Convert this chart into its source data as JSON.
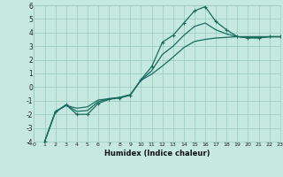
{
  "xlabel": "Humidex (Indice chaleur)",
  "xlim": [
    0,
    23
  ],
  "ylim": [
    -4,
    6
  ],
  "xticks": [
    0,
    1,
    2,
    3,
    4,
    5,
    6,
    7,
    8,
    9,
    10,
    11,
    12,
    13,
    14,
    15,
    16,
    17,
    18,
    19,
    20,
    21,
    22,
    23
  ],
  "yticks": [
    -4,
    -3,
    -2,
    -1,
    0,
    1,
    2,
    3,
    4,
    5,
    6
  ],
  "bg_color": "#c5e8e0",
  "grid_color": "#9ecdc4",
  "line_color": "#1a6b60",
  "line1_x": [
    1,
    2,
    3,
    4,
    5,
    6,
    7,
    8,
    9,
    10,
    11,
    12,
    13,
    14,
    15,
    16,
    17,
    18,
    19,
    20,
    21,
    22,
    23
  ],
  "line1_y": [
    -4,
    -1.8,
    -1.3,
    -2.0,
    -2.0,
    -1.2,
    -0.9,
    -0.8,
    -0.6,
    0.55,
    1.5,
    3.3,
    3.8,
    4.7,
    5.6,
    5.9,
    4.8,
    4.2,
    3.7,
    3.6,
    3.6,
    3.7,
    3.7
  ],
  "line2_x": [
    1,
    2,
    3,
    4,
    5,
    6,
    7,
    8,
    9,
    10,
    11,
    12,
    13,
    14,
    15,
    16,
    17,
    18,
    19,
    20,
    21,
    22,
    23
  ],
  "line2_y": [
    -4,
    -1.8,
    -1.35,
    -1.55,
    -1.45,
    -0.95,
    -0.85,
    -0.75,
    -0.55,
    0.5,
    0.95,
    1.55,
    2.2,
    2.9,
    3.35,
    3.5,
    3.6,
    3.65,
    3.7,
    3.7,
    3.7,
    3.7,
    3.7
  ],
  "line3_x": [
    1,
    2,
    3,
    4,
    5,
    6,
    7,
    8,
    9,
    10,
    11,
    12,
    13,
    14,
    15,
    16,
    17,
    18,
    19,
    20,
    21,
    22,
    23
  ],
  "line3_y": [
    -4,
    -1.85,
    -1.32,
    -1.78,
    -1.72,
    -1.07,
    -0.87,
    -0.77,
    -0.58,
    0.52,
    1.2,
    2.4,
    3.0,
    3.8,
    4.45,
    4.7,
    4.2,
    3.9,
    3.7,
    3.63,
    3.63,
    3.68,
    3.68
  ]
}
